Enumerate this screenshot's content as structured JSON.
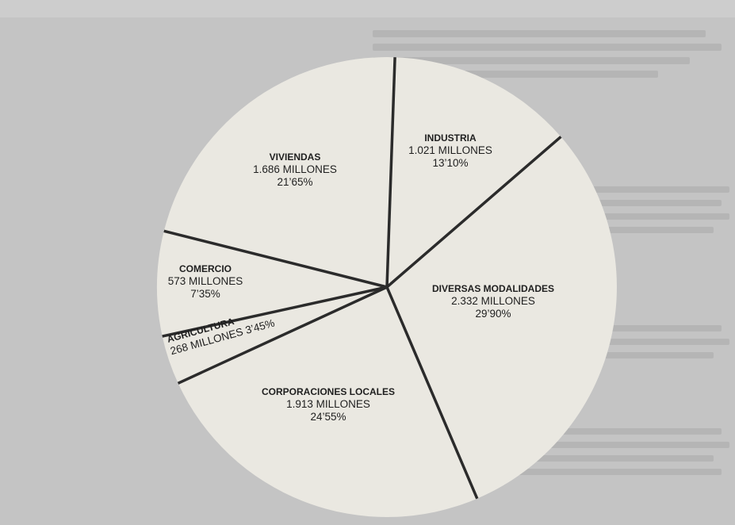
{
  "chart_data": {
    "type": "pie",
    "title": "",
    "unit": "MILLONES",
    "colors": {
      "fill": "#eae8e1",
      "stroke": "#2b2b2b",
      "background": "#c4c4c4"
    },
    "slices": [
      {
        "name": "INDUSTRIA",
        "value": 1021,
        "value_label": "1.021 MILLONES",
        "percent": 13.1,
        "percent_label": "13’10%"
      },
      {
        "name": "DIVERSAS MODALIDADES",
        "value": 2332,
        "value_label": "2.332 MILLONES",
        "percent": 29.9,
        "percent_label": "29’90%"
      },
      {
        "name": "CORPORACIONES LOCALES",
        "value": 1913,
        "value_label": "1.913 MILLONES",
        "percent": 24.55,
        "percent_label": "24’55%"
      },
      {
        "name": "AGRICULTURA",
        "value": 268,
        "value_label": "268 MILLONES 3’45%",
        "percent": 3.45,
        "percent_label": ""
      },
      {
        "name": "COMERCIO",
        "value": 573,
        "value_label": "573 MILLONES",
        "percent": 7.35,
        "percent_label": "7’35%"
      },
      {
        "name": "VIVIENDAS",
        "value": 1686,
        "value_label": "1.686 MILLONES",
        "percent": 21.65,
        "percent_label": "21’65%"
      }
    ]
  }
}
